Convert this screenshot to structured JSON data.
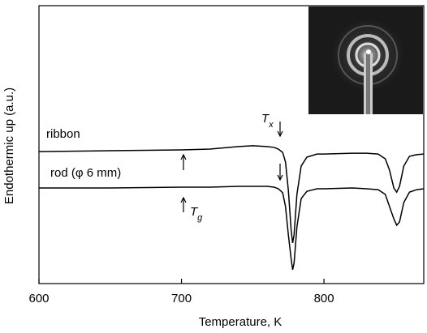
{
  "chart_data": {
    "type": "line",
    "xlabel": "Temperature, K",
    "ylabel": "Endothermic up (a.u.)",
    "xlim": [
      600,
      870
    ],
    "xticks": [
      600,
      700,
      800
    ],
    "ylim": [
      0,
      100
    ],
    "x": [
      600,
      650,
      700,
      720,
      740,
      750,
      760,
      765,
      768,
      771,
      773,
      775,
      777,
      778,
      779,
      781,
      784,
      788,
      795,
      800,
      820,
      830,
      838,
      843,
      846,
      849,
      851,
      853,
      856,
      860,
      865,
      870
    ],
    "series": [
      {
        "name": "ribbon",
        "color": "#000000",
        "values": [
          47.5,
          47.8,
          48.1,
          48.4,
          49.3,
          49.6,
          49.3,
          49.0,
          48.4,
          47.2,
          43.7,
          33.5,
          19.0,
          14.6,
          17.5,
          32.1,
          42.3,
          45.5,
          46.6,
          46.6,
          46.9,
          46.9,
          46.6,
          44.9,
          40.8,
          34.4,
          32.9,
          35.0,
          42.3,
          45.8,
          46.4,
          46.6
        ]
      },
      {
        "name": "rod (φ 6 mm)",
        "color": "#000000",
        "values": [
          34.4,
          34.4,
          34.7,
          34.7,
          35.0,
          35.0,
          35.0,
          34.7,
          34.1,
          32.7,
          27.7,
          17.5,
          8.7,
          5.0,
          7.3,
          20.4,
          30.6,
          33.2,
          34.1,
          34.1,
          34.4,
          34.1,
          33.8,
          32.1,
          27.7,
          23.3,
          21.0,
          22.2,
          29.2,
          32.9,
          33.8,
          34.1
        ]
      }
    ],
    "annotations": [
      {
        "text": "T",
        "sub": "x"
      },
      {
        "text": "T",
        "sub": "g"
      }
    ]
  }
}
